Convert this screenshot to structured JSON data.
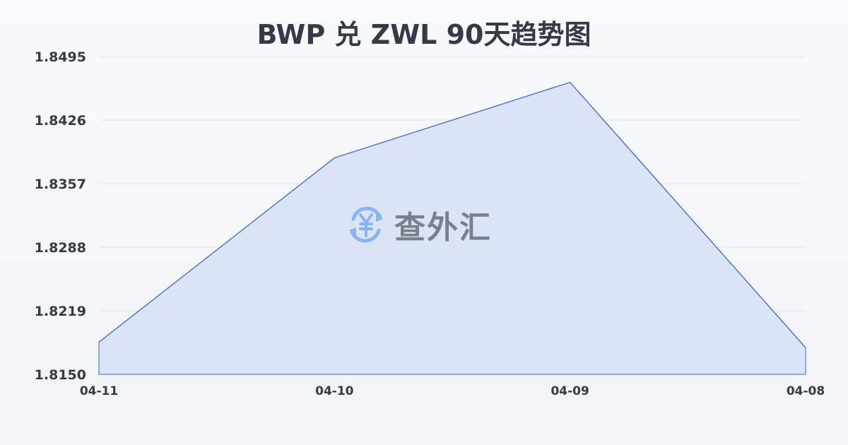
{
  "chart_data": {
    "type": "area",
    "title": "BWP 兑 ZWL 90天趋势图",
    "categories": [
      "04-11",
      "04-10",
      "04-09",
      "04-08"
    ],
    "values": [
      1.8185,
      1.8385,
      1.8467,
      1.8179
    ],
    "yticks": [
      "1.8495",
      "1.8426",
      "1.8357",
      "1.8288",
      "1.8219",
      "1.8150"
    ],
    "ylim": [
      1.815,
      1.8495
    ],
    "grid": true,
    "line_color": "#3a66c8",
    "fill_color": "#d6e0f5"
  },
  "watermark": {
    "text": "查外汇",
    "icon": "yen-exchange-icon",
    "icon_color": "#8ab4f0"
  }
}
